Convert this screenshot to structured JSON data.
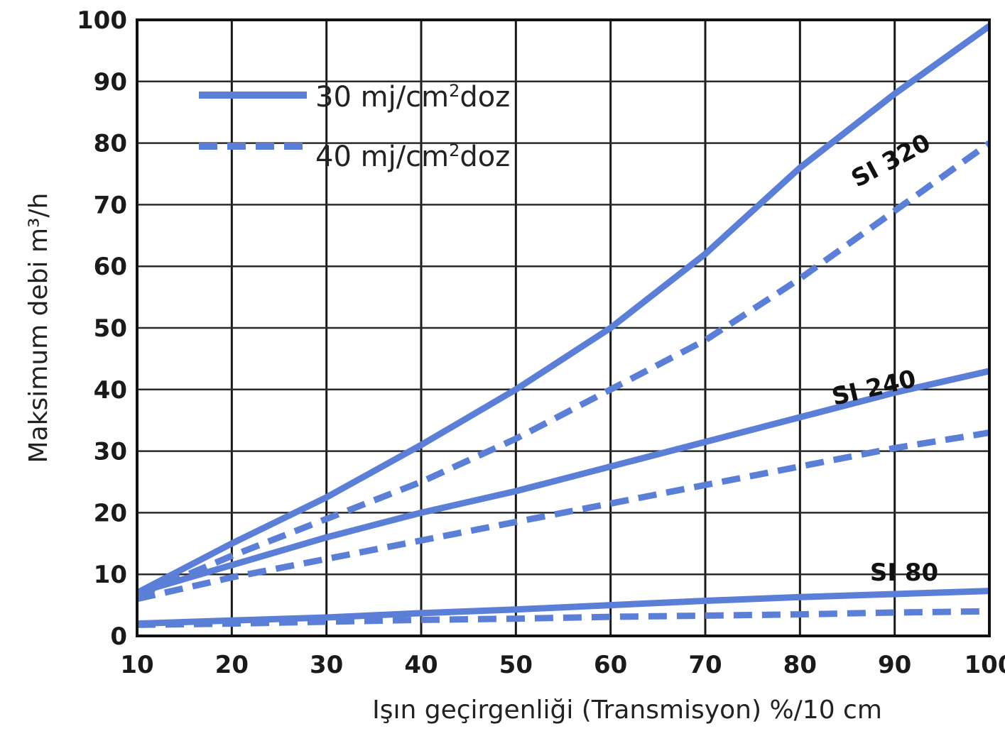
{
  "chart_data": {
    "type": "line",
    "xlabel": "Işın geçirgenliği (Transmisyon) %/10 cm",
    "ylabel": "Maksimum debi m³/h",
    "xlim": [
      10,
      100
    ],
    "ylim": [
      0,
      100
    ],
    "x_ticks": [
      "10",
      "20",
      "30",
      "40",
      "50",
      "60",
      "70",
      "80",
      "90",
      "100"
    ],
    "y_ticks": [
      "0",
      "10",
      "20",
      "30",
      "40",
      "50",
      "60",
      "70",
      "80",
      "90",
      "100"
    ],
    "grid": true,
    "legend_position": "top-left",
    "legend": {
      "solid": {
        "prefix": "30 mj/cm",
        "sup": "2",
        "suffix": "doz"
      },
      "dashed": {
        "prefix": "40 mj/cm",
        "sup": "2",
        "suffix": "doz"
      }
    },
    "line_color": "#5b7fd6",
    "series": [
      {
        "model": "SI 320",
        "dose": "30",
        "style": "solid",
        "x": [
          10,
          20,
          30,
          40,
          50,
          60,
          70,
          80,
          90,
          100
        ],
        "y": [
          7,
          15,
          22.5,
          31,
          40,
          50,
          62,
          76,
          88,
          99
        ]
      },
      {
        "model": "SI 320",
        "dose": "40",
        "style": "dashed",
        "x": [
          10,
          20,
          30,
          40,
          50,
          60,
          70,
          80,
          90,
          100
        ],
        "y": [
          6.5,
          13,
          19,
          25,
          32,
          40,
          48,
          58,
          69,
          80
        ]
      },
      {
        "model": "SI 240",
        "dose": "30",
        "style": "solid",
        "x": [
          10,
          20,
          30,
          40,
          50,
          60,
          70,
          80,
          90,
          100
        ],
        "y": [
          7,
          11.5,
          16,
          20,
          23.5,
          27.5,
          31.5,
          35.5,
          39.5,
          43
        ]
      },
      {
        "model": "SI 240",
        "dose": "40",
        "style": "dashed",
        "x": [
          10,
          20,
          30,
          40,
          50,
          60,
          70,
          80,
          90,
          100
        ],
        "y": [
          6,
          9.5,
          12.5,
          15.5,
          18.5,
          21.5,
          24.5,
          27.5,
          30.5,
          33
        ]
      },
      {
        "model": "SI 80",
        "dose": "30",
        "style": "solid",
        "x": [
          10,
          20,
          30,
          40,
          50,
          60,
          70,
          80,
          90,
          100
        ],
        "y": [
          2,
          2.5,
          3,
          3.7,
          4.3,
          5,
          5.7,
          6.3,
          6.8,
          7.3
        ]
      },
      {
        "model": "SI 80",
        "dose": "40",
        "style": "dashed",
        "x": [
          10,
          20,
          30,
          40,
          50,
          60,
          70,
          80,
          90,
          100
        ],
        "y": [
          1.8,
          2,
          2.3,
          2.6,
          2.8,
          3.1,
          3.3,
          3.5,
          3.8,
          4
        ]
      }
    ],
    "series_labels": [
      {
        "text": "SI 320",
        "x": 90,
        "y": 76
      },
      {
        "text": "SI 240",
        "x": 88,
        "y": 39
      },
      {
        "text": "SI 80",
        "x": 91,
        "y": 9
      }
    ]
  }
}
